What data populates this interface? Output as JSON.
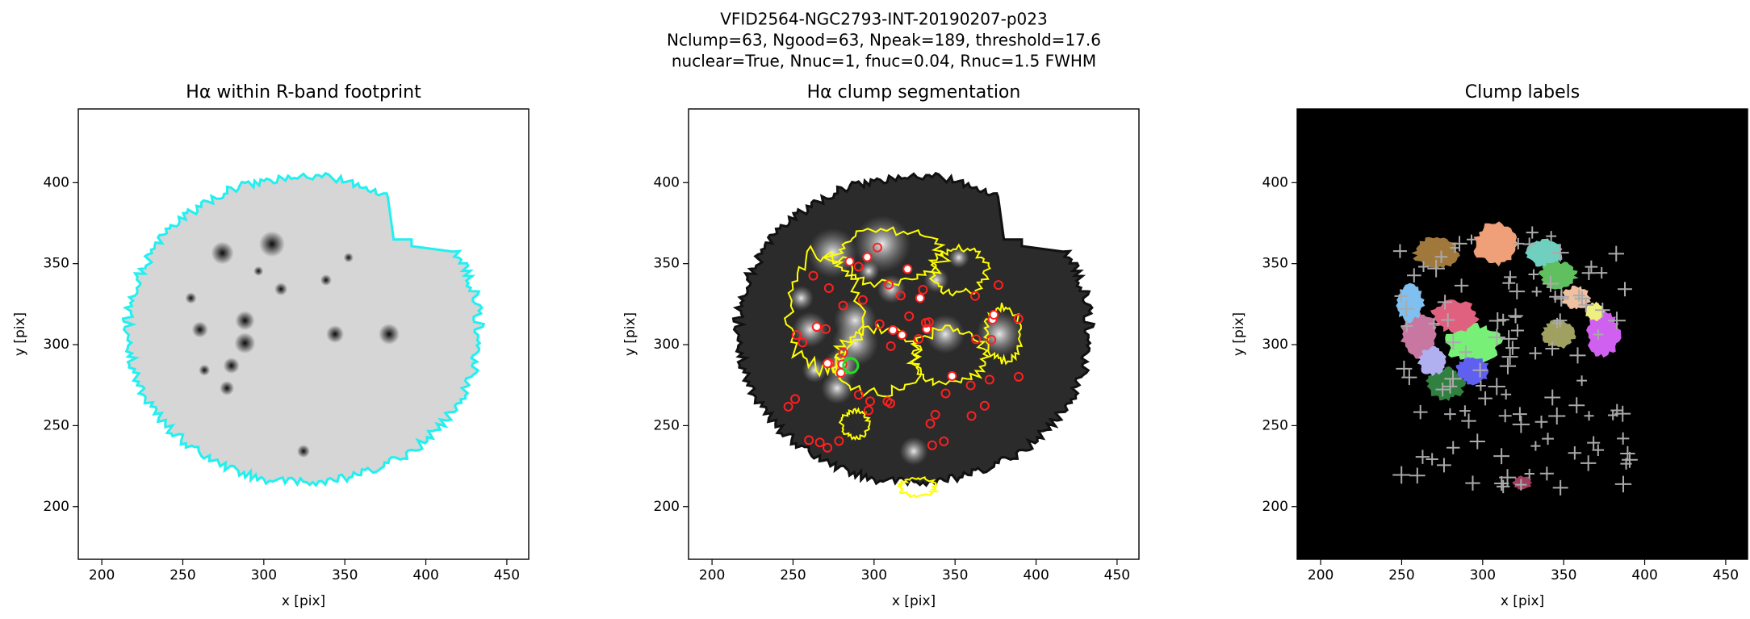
{
  "suptitle": [
    "VFID2564-NGC2793-INT-20190207-p023",
    "Nclump=63, Ngood=63, Npeak=189, threshold=17.6",
    "nuclear=True, Nnuc=1, fnuc=0.04, Rnuc=1.5 FWHM"
  ],
  "chart_data": [
    {
      "type": "image",
      "title": "Hα within R-band footprint",
      "xlabel": "x [pix]",
      "ylabel": "y [pix]",
      "xlim": [
        185.5,
        463.5
      ],
      "ylim": [
        167.5,
        445.5
      ],
      "xticks": [
        200,
        250,
        300,
        350,
        400,
        450
      ],
      "yticks": [
        200,
        250,
        300,
        350,
        400
      ]
    },
    {
      "type": "image",
      "title": "Hα clump segmentation",
      "xlabel": "x [pix]",
      "ylabel": "y [pix]",
      "xlim": [
        185.5,
        463.5
      ],
      "ylim": [
        167.5,
        445.5
      ],
      "xticks": [
        200,
        250,
        300,
        350,
        400,
        450
      ],
      "yticks": [
        200,
        250,
        300,
        350,
        400
      ]
    },
    {
      "type": "image",
      "title": "Clump labels",
      "xlabel": "x [pix]",
      "ylabel": "y [pix]",
      "xlim": [
        185.5,
        463.5
      ],
      "ylim": [
        167.5,
        445.5
      ],
      "xticks": [
        200,
        250,
        300,
        350,
        400,
        450
      ],
      "yticks": [
        200,
        250,
        300,
        350,
        400
      ]
    }
  ]
}
